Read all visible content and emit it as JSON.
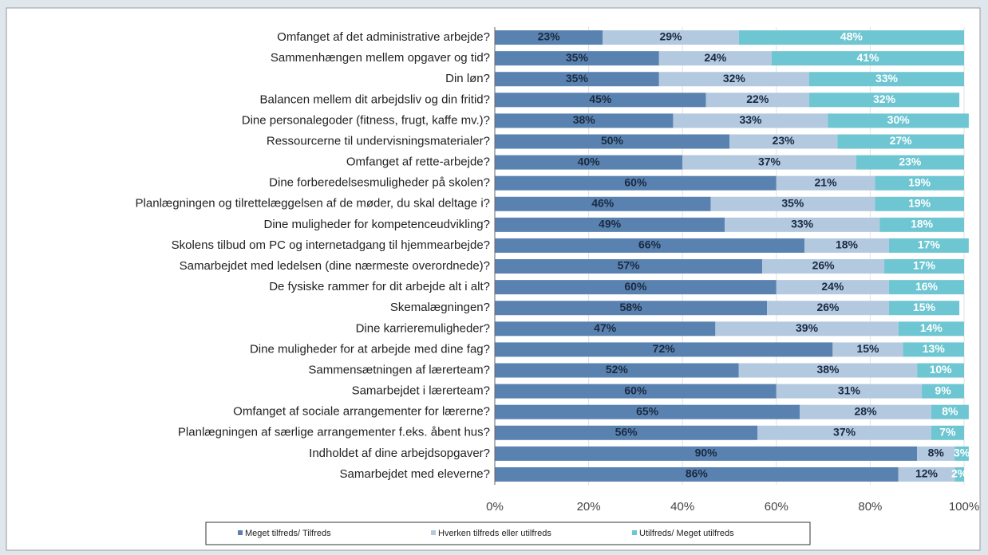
{
  "chart_data": {
    "type": "stacked-barh",
    "categories": [
      "Omfanget af det administrative arbejde?",
      "Sammenhængen mellem opgaver og tid?",
      "Din løn?",
      "Balancen mellem dit arbejdsliv og din fritid?",
      "Dine personalegoder (fitness, frugt, kaffe mv.)?",
      "Ressourcerne til undervisningsmaterialer?",
      "Omfanget af rette-arbejde?",
      "Dine forberedelsesmuligheder på skolen?",
      "Planlægningen og tilrettelæggelsen af de møder, du skal deltage i?",
      "Dine muligheder for kompetenceudvikling?",
      "Skolens tilbud om PC og internetadgang til hjemmearbejde?",
      "Samarbejdet med ledelsen (dine nærmeste overordnede)?",
      "De fysiske rammer for dit arbejde alt i alt?",
      "Skemalægningen?",
      "Dine karrieremuligheder?",
      "Dine muligheder for at arbejde med dine fag?",
      "Sammensætningen af lærerteam?",
      "Samarbejdet i lærerteam?",
      "Omfanget af sociale arrangementer for lærerne?",
      "Planlægningen af særlige arrangementer f.eks. åbent hus?",
      "Indholdet af dine arbejdsopgaver?",
      "Samarbejdet med eleverne?"
    ],
    "series": [
      {
        "name": "Meget tilfreds/ Tilfreds",
        "color": "#5a82b0",
        "label_color": "#1a2a40",
        "values": [
          23,
          35,
          35,
          45,
          38,
          50,
          40,
          60,
          46,
          49,
          66,
          57,
          60,
          58,
          47,
          72,
          52,
          60,
          65,
          56,
          90,
          86
        ],
        "value_labels": [
          "23%",
          "35%",
          "35%",
          "45%",
          "38%",
          "50%",
          "40%",
          "60%",
          "46%",
          "49%",
          "66%",
          "57%",
          "60%",
          "58%",
          "47%",
          "72%",
          "52%",
          "60%",
          "65%",
          "56%",
          "90%",
          "86%"
        ]
      },
      {
        "name": "Hverken tilfreds eller utilfreds",
        "color": "#b3c9e0",
        "label_color": "#1a2a40",
        "values": [
          29,
          24,
          32,
          22,
          33,
          23,
          37,
          21,
          35,
          33,
          18,
          26,
          24,
          26,
          39,
          15,
          38,
          31,
          28,
          37,
          8,
          12
        ],
        "value_labels": [
          "29%",
          "24%",
          "32%",
          "22%",
          "33%",
          "23%",
          "37%",
          "21%",
          "35%",
          "33%",
          "18%",
          "26%",
          "24%",
          "26%",
          "39%",
          "15%",
          "38%",
          "31%",
          "28%",
          "37%",
          "8%",
          "12%"
        ]
      },
      {
        "name": "Utilfreds/ Meget utilfreds",
        "color": "#6ec6d2",
        "label_color": "#ffffff",
        "values": [
          48,
          41,
          33,
          32,
          30,
          27,
          23,
          19,
          19,
          18,
          17,
          17,
          16,
          15,
          14,
          13,
          10,
          9,
          8,
          7,
          3,
          2
        ],
        "value_labels": [
          "48%",
          "41%",
          "33%",
          "32%",
          "30%",
          "27%",
          "23%",
          "19%",
          "19%",
          "18%",
          "17%",
          "17%",
          "16%",
          "15%",
          "14%",
          "13%",
          "10%",
          "9%",
          "8%",
          "7%",
          "3%",
          "2%"
        ]
      }
    ],
    "xlim": [
      0,
      100
    ],
    "xticks": [
      {
        "value": 0,
        "label": "0%"
      },
      {
        "value": 20,
        "label": "20%"
      },
      {
        "value": 40,
        "label": "40%"
      },
      {
        "value": 60,
        "label": "60%"
      },
      {
        "value": 80,
        "label": "80%"
      },
      {
        "value": 100,
        "label": "100%"
      }
    ],
    "grid": true
  }
}
